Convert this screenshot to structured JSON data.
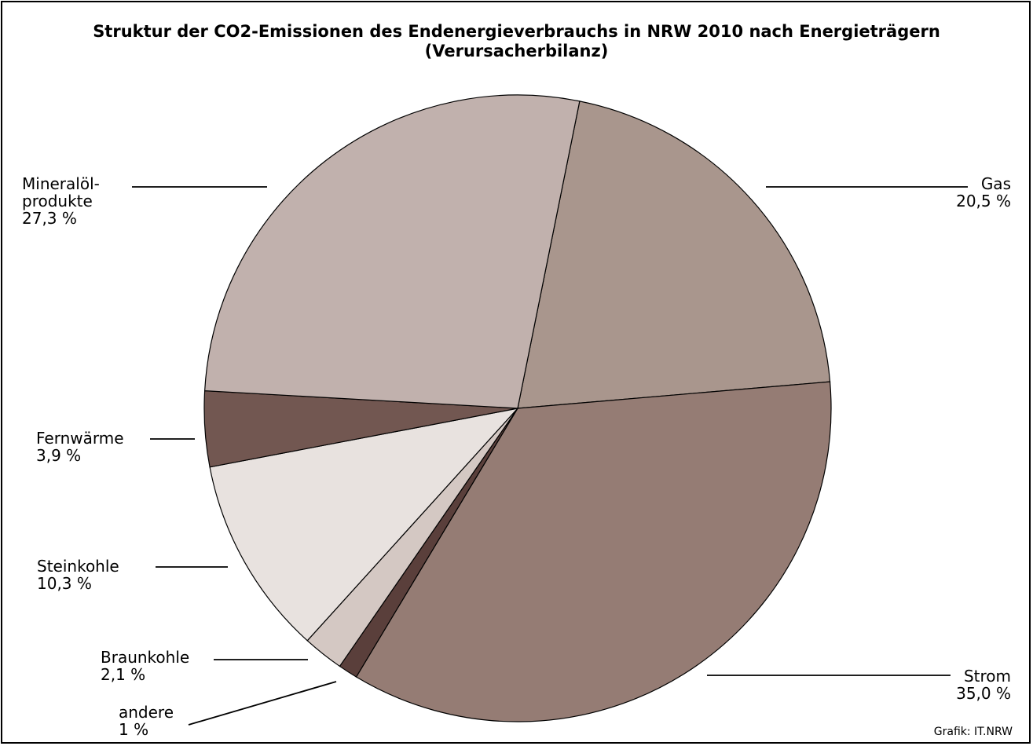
{
  "chart_data": {
    "type": "pie",
    "title": "Struktur der CO2-Emissionen des Endenergieverbrauchs in NRW 2010 nach Energieträgern",
    "subtitle": "(Verursacherbilanz)",
    "slices": [
      {
        "label": "Gas",
        "value_label": "20,5 %",
        "value": 20.5,
        "color": "#a9968d"
      },
      {
        "label": "Strom",
        "value_label": "35,0 %",
        "value": 35.0,
        "color": "#957c74"
      },
      {
        "label": "andere",
        "value_label": "1 %",
        "value": 1.0,
        "color": "#5a3f3b"
      },
      {
        "label": "Braunkohle",
        "value_label": "2,1 %",
        "value": 2.1,
        "color": "#d4c8c3"
      },
      {
        "label": "Steinkohle",
        "value_label": "10,3 %",
        "value": 10.3,
        "color": "#e8e2df"
      },
      {
        "label": "Fernwärme",
        "value_label": "3,9 %",
        "value": 3.9,
        "color": "#725751"
      },
      {
        "label_lines": [
          "Mineralöl-",
          "produkte"
        ],
        "value_label": "27,3 %",
        "value": 27.3,
        "color": "#c1b1ad"
      }
    ],
    "legend": "none"
  },
  "credit": "Grafik: IT.NRW"
}
